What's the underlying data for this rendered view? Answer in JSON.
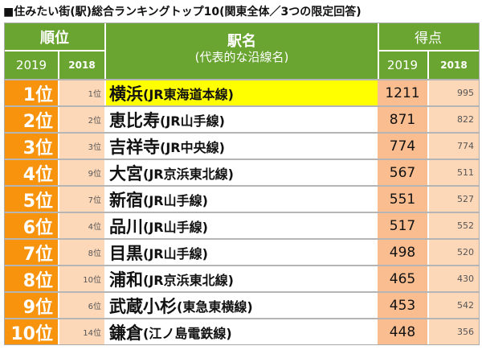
{
  "title": "■住みたい街(駅)総合ランキングトップ10(関東全体／3つの限定回答)",
  "header": {
    "rank": "順位",
    "station": "駅名",
    "station_sub": "(代表的な沿線名)",
    "score": "得点",
    "y2019": "2019",
    "y2018": "2018"
  },
  "colors": {
    "header": "#6aa532",
    "rank": "#f7930c",
    "highlight": "#ffff00"
  },
  "rows": [
    {
      "rank": "1位",
      "prev": "1位",
      "station": "横浜",
      "line": "(JR東海道本線)",
      "score": "1211",
      "prev_score": "995",
      "highlight": true
    },
    {
      "rank": "2位",
      "prev": "2位",
      "station": "恵比寿",
      "line": "(JR山手線)",
      "score": "871",
      "prev_score": "822"
    },
    {
      "rank": "3位",
      "prev": "3位",
      "station": "吉祥寺",
      "line": "(JR中央線)",
      "score": "774",
      "prev_score": "774"
    },
    {
      "rank": "4位",
      "prev": "9位",
      "station": "大宮",
      "line": "(JR京浜東北線)",
      "score": "567",
      "prev_score": "511"
    },
    {
      "rank": "5位",
      "prev": "7位",
      "station": "新宿",
      "line": "(JR山手線)",
      "score": "551",
      "prev_score": "527"
    },
    {
      "rank": "6位",
      "prev": "4位",
      "station": "品川",
      "line": "(JR山手線)",
      "score": "517",
      "prev_score": "552"
    },
    {
      "rank": "7位",
      "prev": "8位",
      "station": "目黒",
      "line": "(JR山手線)",
      "score": "498",
      "prev_score": "520"
    },
    {
      "rank": "8位",
      "prev": "10位",
      "station": "浦和",
      "line": "(JR京浜東北線)",
      "score": "465",
      "prev_score": "430"
    },
    {
      "rank": "9位",
      "prev": "6位",
      "station": "武蔵小杉",
      "line": "(東急東横線)",
      "score": "453",
      "prev_score": "542"
    },
    {
      "rank": "10位",
      "prev": "14位",
      "station": "鎌倉",
      "line": "(江ノ島電鉄線)",
      "score": "448",
      "prev_score": "356"
    }
  ]
}
